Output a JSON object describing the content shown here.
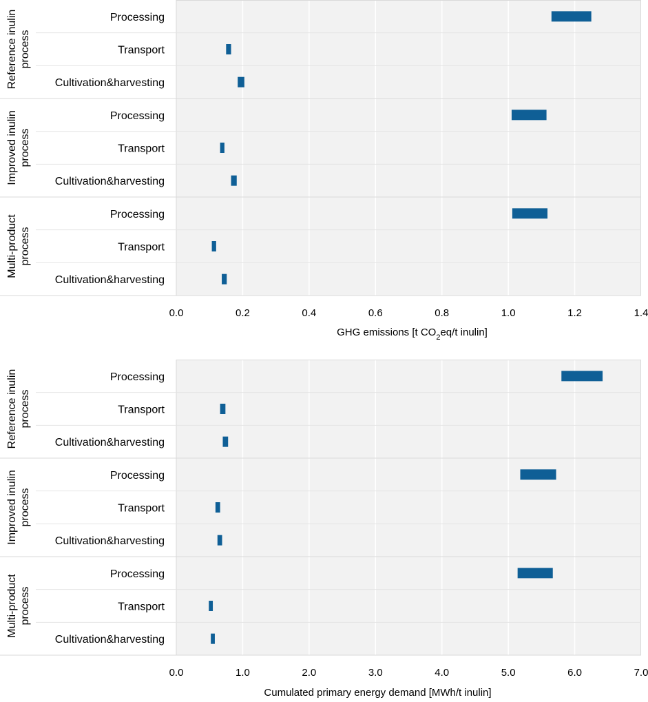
{
  "chart_data": [
    {
      "type": "range-bar",
      "xlabel_prefix": "GHG emissions [t CO",
      "xlabel_sub": "2",
      "xlabel_suffix": "eq/t inulin]",
      "xlim": [
        0,
        1.4
      ],
      "xticks": [
        0,
        0.2,
        0.4,
        0.6,
        0.8,
        1.0,
        1.2,
        1.4
      ],
      "xtick_labels": [
        "0.0",
        "0.2",
        "0.4",
        "0.6",
        "0.8",
        "1.0",
        "1.2",
        "1.4"
      ],
      "groups": [
        {
          "label_lines": [
            "Reference inulin",
            "process"
          ],
          "rows": [
            {
              "label": "Processing",
              "min": 1.13,
              "max": 1.25
            },
            {
              "label": "Transport",
              "min": 0.15,
              "max": 0.165
            },
            {
              "label": "Cultivation&harvesting",
              "min": 0.185,
              "max": 0.205
            }
          ]
        },
        {
          "label_lines": [
            "Improved inulin",
            "process"
          ],
          "rows": [
            {
              "label": "Processing",
              "min": 1.01,
              "max": 1.115
            },
            {
              "label": "Transport",
              "min": 0.132,
              "max": 0.145
            },
            {
              "label": "Cultivation&harvesting",
              "min": 0.165,
              "max": 0.182
            }
          ]
        },
        {
          "label_lines": [
            "Multi-product",
            "process"
          ],
          "rows": [
            {
              "label": "Processing",
              "min": 1.012,
              "max": 1.118
            },
            {
              "label": "Transport",
              "min": 0.107,
              "max": 0.12
            },
            {
              "label": "Cultivation&harvesting",
              "min": 0.137,
              "max": 0.152
            }
          ]
        }
      ]
    },
    {
      "type": "range-bar",
      "xlabel": "Cumulated primary energy demand [MWh/t inulin]",
      "xlim": [
        0,
        7
      ],
      "xticks": [
        0,
        1,
        2,
        3,
        4,
        5,
        6,
        7
      ],
      "xtick_labels": [
        "0.0",
        "1.0",
        "2.0",
        "3.0",
        "4.0",
        "5.0",
        "6.0",
        "7.0"
      ],
      "groups": [
        {
          "label_lines": [
            "Reference inulin",
            "process"
          ],
          "rows": [
            {
              "label": "Processing",
              "min": 5.8,
              "max": 6.42
            },
            {
              "label": "Transport",
              "min": 0.66,
              "max": 0.74
            },
            {
              "label": "Cultivation&harvesting",
              "min": 0.7,
              "max": 0.78
            }
          ]
        },
        {
          "label_lines": [
            "Improved inulin",
            "process"
          ],
          "rows": [
            {
              "label": "Processing",
              "min": 5.18,
              "max": 5.72
            },
            {
              "label": "Transport",
              "min": 0.59,
              "max": 0.66
            },
            {
              "label": "Cultivation&harvesting",
              "min": 0.62,
              "max": 0.69
            }
          ]
        },
        {
          "label_lines": [
            "Multi-product",
            "process"
          ],
          "rows": [
            {
              "label": "Processing",
              "min": 5.14,
              "max": 5.67
            },
            {
              "label": "Transport",
              "min": 0.49,
              "max": 0.55
            },
            {
              "label": "Cultivation&harvesting",
              "min": 0.52,
              "max": 0.58
            }
          ]
        }
      ]
    }
  ],
  "colors": {
    "bar": "#0f5f96",
    "plot_bg": "#f2f2f2",
    "grid": "#ffffff",
    "panel_line": "#d9d9d9"
  }
}
